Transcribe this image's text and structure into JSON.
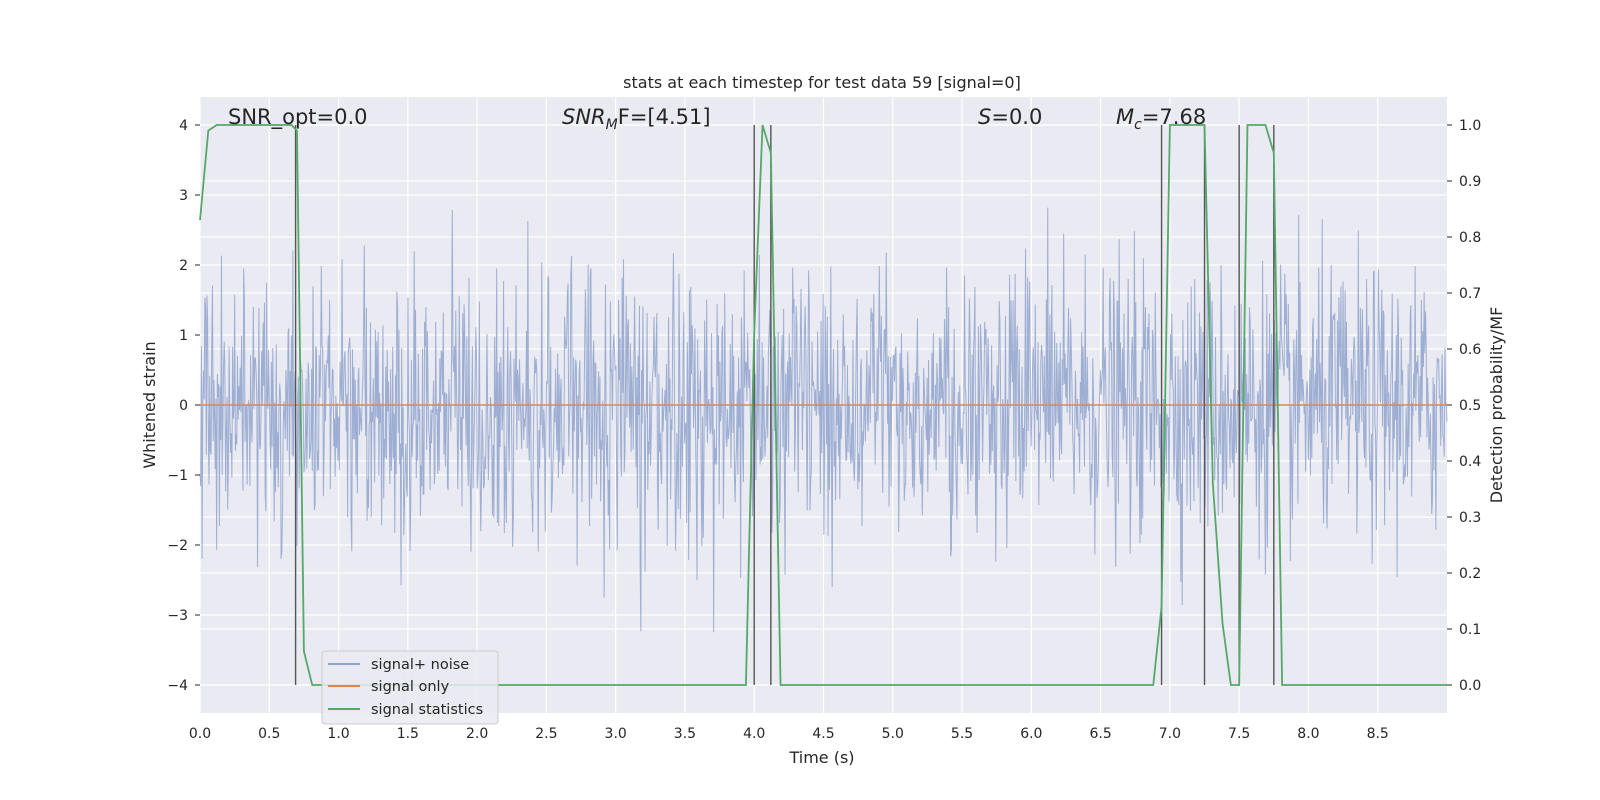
{
  "chart_data": {
    "type": "line",
    "title": "stats at each timestep for test data 59 [signal=0]",
    "xlabel": "Time (s)",
    "ylabel_left": "Whitened strain",
    "ylabel_right": "Detection probability/MF",
    "xlim": [
      0.0,
      9.0
    ],
    "ylim_left": [
      -4.4,
      4.4
    ],
    "ylim_right": [
      -0.05,
      1.05
    ],
    "x_ticks": [
      "0.0",
      "0.5",
      "1.0",
      "1.5",
      "2.0",
      "2.5",
      "3.0",
      "3.5",
      "4.0",
      "4.5",
      "5.0",
      "5.5",
      "6.0",
      "6.5",
      "7.0",
      "7.5",
      "8.0",
      "8.5"
    ],
    "x_tick_values": [
      0.0,
      0.5,
      1.0,
      1.5,
      2.0,
      2.5,
      3.0,
      3.5,
      4.0,
      4.5,
      5.0,
      5.5,
      6.0,
      6.5,
      7.0,
      7.5,
      8.0,
      8.5
    ],
    "y_left_ticks": [
      "−4",
      "−3",
      "−2",
      "−1",
      "0",
      "1",
      "2",
      "3",
      "4"
    ],
    "y_left_tick_values": [
      -4,
      -3,
      -2,
      -1,
      0,
      1,
      2,
      3,
      4
    ],
    "y_right_ticks": [
      "0.0",
      "0.1",
      "0.2",
      "0.3",
      "0.4",
      "0.5",
      "0.6",
      "0.7",
      "0.8",
      "0.9",
      "1.0"
    ],
    "y_right_tick_values": [
      0.0,
      0.1,
      0.2,
      0.3,
      0.4,
      0.5,
      0.6,
      0.7,
      0.8,
      0.9,
      1.0
    ],
    "grid": true,
    "legend_position": "lower-left",
    "annotations": {
      "snr_opt": "SNR_opt=0.0",
      "snr_mf_prefix": "SNR",
      "snr_mf_sub": "M",
      "snr_mf_suffix": "F=[4.51]",
      "s_prefix": "S",
      "s_suffix": "=0.0",
      "mc_prefix": "M",
      "mc_sub": "c",
      "mc_suffix": "=7.68"
    },
    "series": [
      {
        "name": "signal+ noise",
        "color": "#8fa3cc",
        "axis": "left",
        "kind": "noise",
        "std": 0.95,
        "samples": 1800
      },
      {
        "name": "signal only",
        "color": "#dd8452",
        "axis": "left",
        "x": [
          0.0,
          9.0
        ],
        "y": [
          0.0,
          0.0
        ]
      },
      {
        "name": "signal statistics",
        "color": "#55a868",
        "axis": "right",
        "x": [
          0.0,
          0.06,
          0.12,
          0.18,
          0.66,
          0.7,
          0.75,
          0.81,
          0.87,
          3.94,
          4.0,
          4.06,
          4.12,
          4.19,
          4.25,
          6.88,
          6.94,
          7.0,
          7.06,
          7.25,
          7.31,
          7.38,
          7.44,
          7.5,
          7.56,
          7.69,
          7.75,
          7.81,
          7.87,
          9.0
        ],
        "y": [
          0.83,
          0.99,
          1.0,
          1.0,
          1.0,
          0.99,
          0.06,
          0.0,
          0.0,
          0.0,
          0.63,
          1.0,
          0.95,
          0.0,
          0.0,
          0.0,
          0.14,
          1.0,
          1.0,
          1.0,
          0.36,
          0.11,
          0.0,
          0.0,
          1.0,
          1.0,
          0.95,
          0.0,
          0.0,
          0.0
        ]
      }
    ],
    "vertical_markers": [
      0.69,
      4.0,
      4.12,
      6.94,
      7.25,
      7.5,
      7.75
    ],
    "marker_color": "#555555"
  }
}
